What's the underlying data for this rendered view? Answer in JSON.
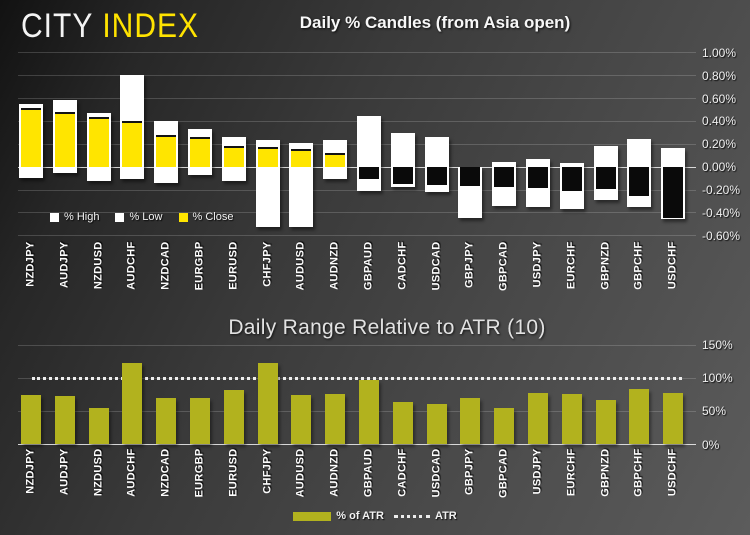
{
  "logo": {
    "city": "CITY",
    "index": "INDEX"
  },
  "chart_data": [
    {
      "type": "bar",
      "subtype": "high-low-close-percent-candles",
      "title": "Daily % Candles (from Asia open)",
      "categories": [
        "NZDJPY",
        "AUDJPY",
        "NZDUSD",
        "AUDCHF",
        "NZDCAD",
        "EURGBP",
        "EURUSD",
        "CHFJPY",
        "AUDUSD",
        "AUDNZD",
        "GBPAUD",
        "CADCHF",
        "USDCAD",
        "GBPJPY",
        "GBPCAD",
        "USDJPY",
        "EURCHF",
        "GBPNZD",
        "GBPCHF",
        "USDCHF"
      ],
      "series": [
        {
          "name": "% High",
          "values": [
            0.55,
            0.58,
            0.47,
            0.8,
            0.4,
            0.33,
            0.26,
            0.23,
            0.21,
            0.23,
            0.44,
            0.29,
            0.26,
            0.0,
            0.04,
            0.07,
            0.03,
            0.18,
            0.24,
            0.16
          ]
        },
        {
          "name": "% Low",
          "values": [
            -0.1,
            -0.06,
            -0.13,
            -0.11,
            -0.14,
            -0.07,
            -0.13,
            -0.53,
            -0.53,
            -0.11,
            -0.21,
            -0.18,
            -0.22,
            -0.45,
            -0.34,
            -0.35,
            -0.37,
            -0.29,
            -0.35,
            -0.46
          ]
        },
        {
          "name": "% Close",
          "values": [
            0.51,
            0.48,
            0.43,
            0.4,
            0.28,
            0.26,
            0.18,
            0.17,
            0.15,
            0.12,
            -0.11,
            -0.15,
            -0.16,
            -0.17,
            -0.18,
            -0.19,
            -0.21,
            -0.2,
            -0.26,
            -0.45
          ]
        }
      ],
      "ylim": [
        -0.6,
        1.0
      ],
      "ytick_labels": [
        "1.00%",
        "0.80%",
        "0.60%",
        "0.40%",
        "0.20%",
        "0.00%",
        "-0.20%",
        "-0.40%",
        "-0.60%"
      ],
      "legend": [
        "% High",
        "% Low",
        "% Close"
      ],
      "legend_position": "inside-bottom-left",
      "grid": true,
      "colors": {
        "range_bar": "#ffffff",
        "close_up": "#ffe500",
        "close_down": "#0a0a0a"
      }
    },
    {
      "type": "bar",
      "title": "Daily Range Relative to ATR (10)",
      "categories": [
        "NZDJPY",
        "AUDJPY",
        "NZDUSD",
        "AUDCHF",
        "NZDCAD",
        "EURGBP",
        "EURUSD",
        "CHFJPY",
        "AUDUSD",
        "AUDNZD",
        "GBPAUD",
        "CADCHF",
        "USDCAD",
        "GBPJPY",
        "GBPCAD",
        "USDJPY",
        "EURCHF",
        "GBPNZD",
        "GBPCHF",
        "USDCHF"
      ],
      "values": [
        74,
        72,
        55,
        122,
        70,
        69,
        81,
        122,
        74,
        75,
        96,
        63,
        60,
        70,
        54,
        77,
        76,
        66,
        83,
        77
      ],
      "ylim": [
        0,
        150
      ],
      "ytick_labels": [
        "150%",
        "100%",
        "50%",
        "0%"
      ],
      "ytick_values": [
        150,
        100,
        50,
        0
      ],
      "reference_line": {
        "label": "ATR",
        "value": 100,
        "style": "dotted"
      },
      "legend": [
        "% of ATR",
        "ATR"
      ],
      "legend_position": "below",
      "grid": true,
      "bar_color": "#b2b21e"
    }
  ]
}
